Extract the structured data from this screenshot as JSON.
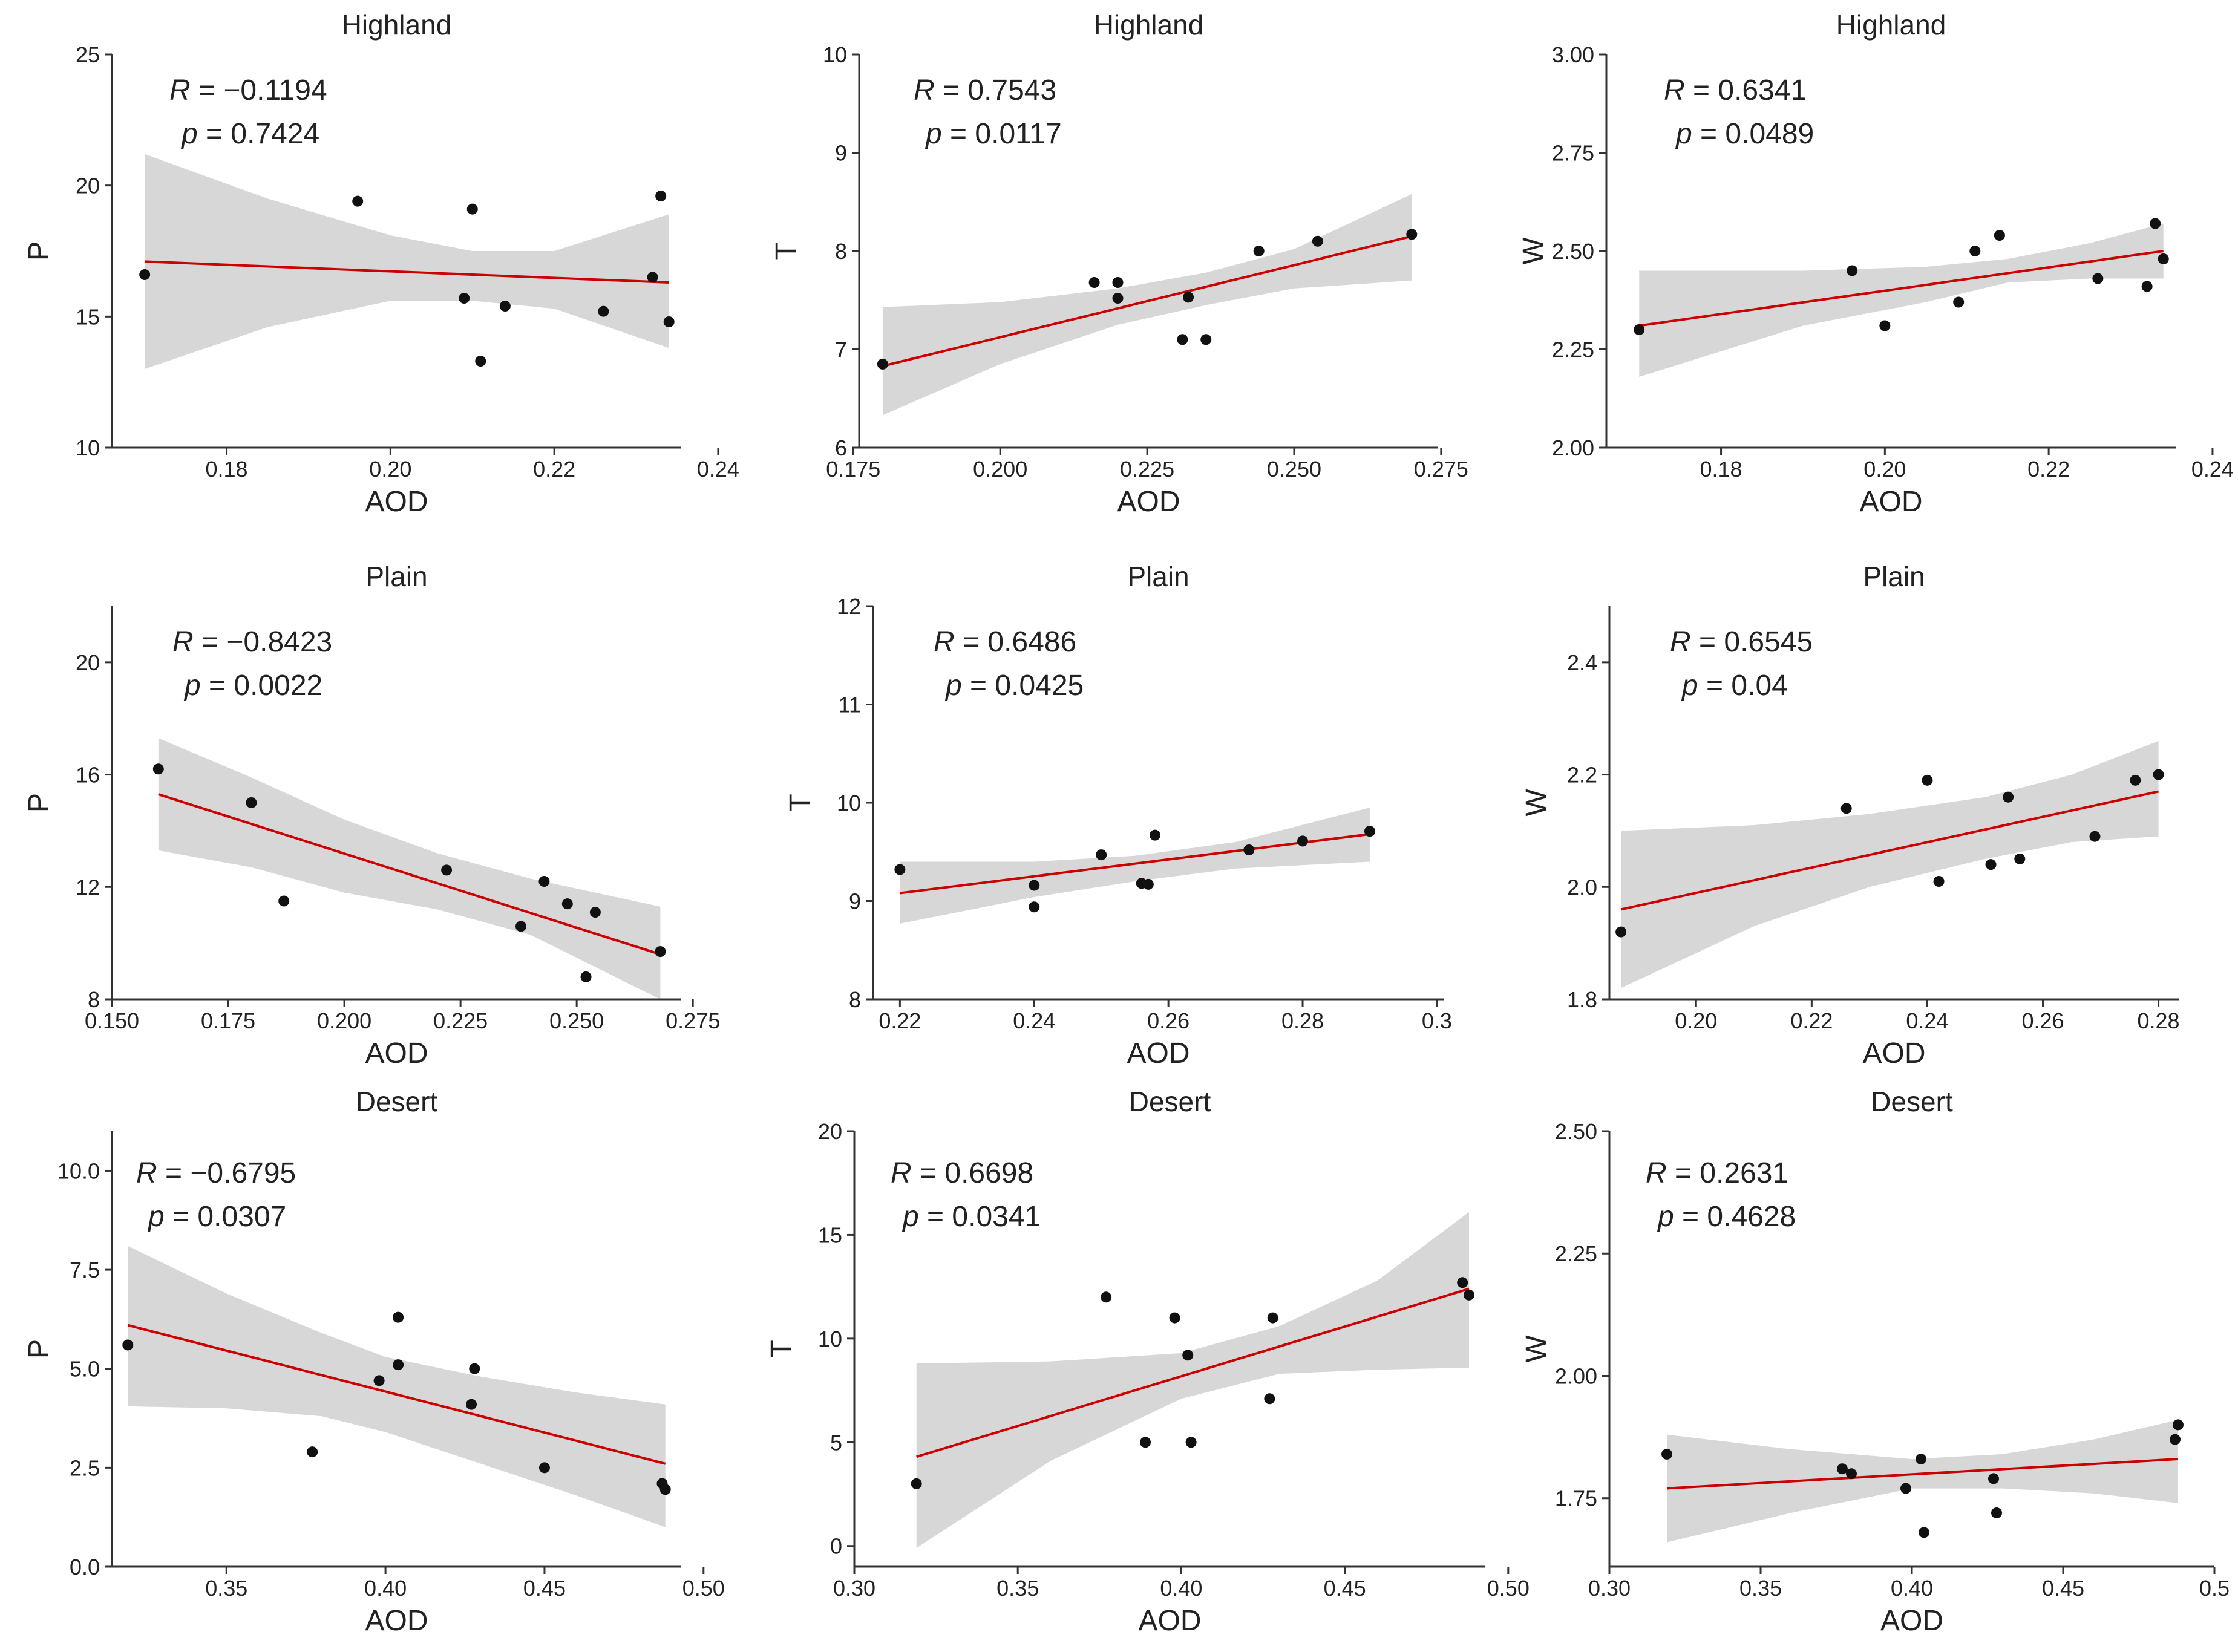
{
  "colors": {
    "line": "#cc0000",
    "band": "#d7d7d7",
    "point": "#111111",
    "axis": "#333333"
  },
  "chart_data": [
    {
      "type": "scatter",
      "title": "Highland",
      "xlabel": "AOD",
      "ylabel": "P",
      "xlim": [
        0.166,
        0.2355
      ],
      "ylim": [
        10,
        25
      ],
      "xticks": [
        0.18,
        0.2,
        0.22,
        0.24
      ],
      "xtick_labels": [
        "0.18",
        "0.20",
        "0.22",
        "0.24"
      ],
      "yticks": [
        10,
        15,
        20,
        25
      ],
      "ytick_labels": [
        "10",
        "15",
        "20",
        "25"
      ],
      "R_label": "R",
      "R_value": "−0.1194",
      "p_label": "p",
      "p_value": "0.7424",
      "x": [
        0.17,
        0.196,
        0.209,
        0.21,
        0.211,
        0.214,
        0.226,
        0.232,
        0.233,
        0.234
      ],
      "y": [
        16.6,
        19.4,
        15.7,
        19.1,
        13.3,
        15.4,
        15.2,
        16.5,
        19.6,
        14.8
      ],
      "fit": [
        [
          0.17,
          17.1
        ],
        [
          0.234,
          16.3
        ]
      ],
      "band_upper": [
        [
          0.17,
          21.2
        ],
        [
          0.185,
          19.5
        ],
        [
          0.2,
          18.1
        ],
        [
          0.21,
          17.5
        ],
        [
          0.22,
          17.5
        ],
        [
          0.234,
          18.9
        ]
      ],
      "band_lower": [
        [
          0.17,
          13.0
        ],
        [
          0.185,
          14.6
        ],
        [
          0.2,
          15.6
        ],
        [
          0.21,
          15.6
        ],
        [
          0.22,
          15.3
        ],
        [
          0.234,
          13.8
        ]
      ]
    },
    {
      "type": "scatter",
      "title": "Highland",
      "xlabel": "AOD",
      "ylabel": "T",
      "xlim": [
        0.176,
        0.2745
      ],
      "ylim": [
        6,
        10
      ],
      "xticks": [
        0.175,
        0.2,
        0.225,
        0.25,
        0.275
      ],
      "xtick_labels": [
        "0.175",
        "0.200",
        "0.225",
        "0.250",
        "0.275"
      ],
      "yticks": [
        6,
        7,
        8,
        9,
        10
      ],
      "ytick_labels": [
        "6",
        "7",
        "8",
        "9",
        "10"
      ],
      "R_label": "R",
      "R_value": "0.7543",
      "p_label": "p",
      "p_value": "0.0117",
      "x": [
        0.18,
        0.216,
        0.22,
        0.22,
        0.231,
        0.232,
        0.235,
        0.244,
        0.254,
        0.27
      ],
      "y": [
        6.85,
        7.68,
        7.68,
        7.52,
        7.1,
        7.53,
        7.1,
        8.0,
        8.1,
        8.17
      ],
      "fit": [
        [
          0.18,
          6.83
        ],
        [
          0.27,
          8.15
        ]
      ],
      "band_upper": [
        [
          0.18,
          7.43
        ],
        [
          0.2,
          7.48
        ],
        [
          0.22,
          7.62
        ],
        [
          0.235,
          7.78
        ],
        [
          0.25,
          8.02
        ],
        [
          0.27,
          8.58
        ]
      ],
      "band_lower": [
        [
          0.18,
          6.33
        ],
        [
          0.2,
          6.85
        ],
        [
          0.22,
          7.25
        ],
        [
          0.235,
          7.45
        ],
        [
          0.25,
          7.62
        ],
        [
          0.27,
          7.7
        ]
      ]
    },
    {
      "type": "scatter",
      "title": "Highland",
      "xlabel": "AOD",
      "ylabel": "W",
      "xlim": [
        0.166,
        0.2355
      ],
      "ylim": [
        2.0,
        3.0
      ],
      "xticks": [
        0.18,
        0.2,
        0.22,
        0.24
      ],
      "xtick_labels": [
        "0.18",
        "0.20",
        "0.22",
        "0.24"
      ],
      "yticks": [
        2.0,
        2.25,
        2.5,
        2.75,
        3.0
      ],
      "ytick_labels": [
        "2.00",
        "2.25",
        "2.50",
        "2.75",
        "3.00"
      ],
      "R_label": "R",
      "R_value": "0.6341",
      "p_label": "p",
      "p_value": "0.0489",
      "x": [
        0.17,
        0.196,
        0.2,
        0.209,
        0.211,
        0.214,
        0.226,
        0.232,
        0.233,
        0.234
      ],
      "y": [
        2.3,
        2.45,
        2.31,
        2.37,
        2.5,
        2.54,
        2.43,
        2.41,
        2.57,
        2.48
      ],
      "fit": [
        [
          0.17,
          2.31
        ],
        [
          0.234,
          2.5
        ]
      ],
      "band_upper": [
        [
          0.17,
          2.45
        ],
        [
          0.19,
          2.45
        ],
        [
          0.205,
          2.46
        ],
        [
          0.215,
          2.48
        ],
        [
          0.225,
          2.52
        ],
        [
          0.234,
          2.57
        ]
      ],
      "band_lower": [
        [
          0.17,
          2.18
        ],
        [
          0.19,
          2.31
        ],
        [
          0.205,
          2.37
        ],
        [
          0.215,
          2.42
        ],
        [
          0.225,
          2.43
        ],
        [
          0.234,
          2.43
        ]
      ]
    },
    {
      "type": "scatter",
      "title": "Plain",
      "xlabel": "AOD",
      "ylabel": "P",
      "xlim": [
        0.15,
        0.2725
      ],
      "ylim": [
        8,
        22
      ],
      "xticks": [
        0.15,
        0.175,
        0.2,
        0.225,
        0.25,
        0.275
      ],
      "xtick_labels": [
        "0.150",
        "0.175",
        "0.200",
        "0.225",
        "0.250",
        "0.275"
      ],
      "yticks": [
        8,
        12,
        16,
        20
      ],
      "ytick_labels": [
        "8",
        "12",
        "16",
        "20"
      ],
      "R_label": "R",
      "R_value": "−0.8423",
      "p_label": "p",
      "p_value": "0.0022",
      "x": [
        0.16,
        0.18,
        0.187,
        0.222,
        0.238,
        0.243,
        0.248,
        0.252,
        0.254,
        0.268
      ],
      "y": [
        16.2,
        15.0,
        11.5,
        12.6,
        10.6,
        12.2,
        11.4,
        8.8,
        11.1,
        9.7
      ],
      "fit": [
        [
          0.16,
          15.3
        ],
        [
          0.268,
          9.6
        ]
      ],
      "band_upper": [
        [
          0.16,
          17.3
        ],
        [
          0.18,
          15.9
        ],
        [
          0.2,
          14.4
        ],
        [
          0.22,
          13.2
        ],
        [
          0.24,
          12.3
        ],
        [
          0.268,
          11.3
        ]
      ],
      "band_lower": [
        [
          0.16,
          13.3
        ],
        [
          0.18,
          12.7
        ],
        [
          0.2,
          11.8
        ],
        [
          0.22,
          11.2
        ],
        [
          0.24,
          10.3
        ],
        [
          0.268,
          8.0
        ]
      ]
    },
    {
      "type": "scatter",
      "title": "Plain",
      "xlabel": "AOD",
      "ylabel": "T",
      "xlim": [
        0.216,
        0.301
      ],
      "ylim": [
        8,
        12
      ],
      "xticks": [
        0.22,
        0.24,
        0.26,
        0.28,
        0.3
      ],
      "xtick_labels": [
        "0.22",
        "0.24",
        "0.26",
        "0.28",
        "0.3"
      ],
      "yticks": [
        8,
        9,
        10,
        11,
        12
      ],
      "ytick_labels": [
        "8",
        "9",
        "10",
        "11",
        "12"
      ],
      "R_label": "R",
      "R_value": "0.6486",
      "p_label": "p",
      "p_value": "0.0425",
      "x": [
        0.22,
        0.24,
        0.24,
        0.25,
        0.256,
        0.257,
        0.258,
        0.272,
        0.28,
        0.29
      ],
      "y": [
        9.32,
        9.16,
        8.94,
        9.47,
        9.18,
        9.17,
        9.67,
        9.52,
        9.61,
        9.71
      ],
      "fit": [
        [
          0.22,
          9.08
        ],
        [
          0.29,
          9.68
        ]
      ],
      "band_upper": [
        [
          0.22,
          9.4
        ],
        [
          0.24,
          9.4
        ],
        [
          0.255,
          9.46
        ],
        [
          0.27,
          9.6
        ],
        [
          0.29,
          9.95
        ]
      ],
      "band_lower": [
        [
          0.22,
          8.77
        ],
        [
          0.24,
          9.04
        ],
        [
          0.255,
          9.2
        ],
        [
          0.27,
          9.33
        ],
        [
          0.29,
          9.4
        ]
      ]
    },
    {
      "type": "scatter",
      "title": "Plain",
      "xlabel": "AOD",
      "ylabel": "W",
      "xlim": [
        0.185,
        0.2835
      ],
      "ylim": [
        1.8,
        2.5
      ],
      "xticks": [
        0.2,
        0.22,
        0.24,
        0.26,
        0.28
      ],
      "xtick_labels": [
        "0.20",
        "0.22",
        "0.24",
        "0.26",
        "0.28"
      ],
      "yticks": [
        1.8,
        2.0,
        2.2,
        2.4
      ],
      "ytick_labels": [
        "1.8",
        "2.0",
        "2.2",
        "2.4"
      ],
      "R_label": "R",
      "R_value": "0.6545",
      "p_label": "p",
      "p_value": "0.04",
      "x": [
        0.187,
        0.226,
        0.24,
        0.242,
        0.251,
        0.254,
        0.256,
        0.269,
        0.276,
        0.28
      ],
      "y": [
        1.92,
        2.14,
        2.19,
        2.01,
        2.04,
        2.16,
        2.05,
        2.09,
        2.19,
        2.2
      ],
      "fit": [
        [
          0.187,
          1.96
        ],
        [
          0.28,
          2.17
        ]
      ],
      "band_upper": [
        [
          0.187,
          2.1
        ],
        [
          0.21,
          2.11
        ],
        [
          0.23,
          2.13
        ],
        [
          0.25,
          2.16
        ],
        [
          0.265,
          2.2
        ],
        [
          0.28,
          2.26
        ]
      ],
      "band_lower": [
        [
          0.187,
          1.82
        ],
        [
          0.21,
          1.93
        ],
        [
          0.23,
          2.0
        ],
        [
          0.25,
          2.05
        ],
        [
          0.265,
          2.08
        ],
        [
          0.28,
          2.09
        ]
      ]
    },
    {
      "type": "scatter",
      "title": "Desert",
      "xlabel": "AOD",
      "ylabel": "P",
      "xlim": [
        0.314,
        0.493
      ],
      "ylim": [
        0,
        11
      ],
      "xticks": [
        0.35,
        0.4,
        0.45,
        0.5
      ],
      "xtick_labels": [
        "0.35",
        "0.40",
        "0.45",
        "0.50"
      ],
      "yticks": [
        0,
        2.5,
        5.0,
        7.5,
        10.0
      ],
      "ytick_labels": [
        "0.0",
        "2.5",
        "5.0",
        "7.5",
        "10.0"
      ],
      "R_label": "R",
      "R_value": "−0.6795",
      "p_label": "p",
      "p_value": "0.0307",
      "x": [
        0.319,
        0.377,
        0.398,
        0.404,
        0.404,
        0.427,
        0.428,
        0.45,
        0.487,
        0.488
      ],
      "y": [
        5.6,
        2.9,
        4.7,
        6.3,
        5.1,
        4.1,
        5.0,
        2.5,
        2.1,
        1.95
      ],
      "fit": [
        [
          0.319,
          6.1
        ],
        [
          0.488,
          2.6
        ]
      ],
      "band_upper": [
        [
          0.319,
          8.1
        ],
        [
          0.35,
          6.9
        ],
        [
          0.38,
          5.9
        ],
        [
          0.4,
          5.3
        ],
        [
          0.43,
          4.8
        ],
        [
          0.46,
          4.4
        ],
        [
          0.488,
          4.1
        ]
      ],
      "band_lower": [
        [
          0.319,
          4.05
        ],
        [
          0.35,
          4.0
        ],
        [
          0.38,
          3.8
        ],
        [
          0.4,
          3.4
        ],
        [
          0.43,
          2.6
        ],
        [
          0.46,
          1.8
        ],
        [
          0.488,
          1.0
        ]
      ]
    },
    {
      "type": "scatter",
      "title": "Desert",
      "xlabel": "AOD",
      "ylabel": "T",
      "xlim": [
        0.3,
        0.493
      ],
      "ylim": [
        -1,
        20
      ],
      "xticks": [
        0.3,
        0.35,
        0.4,
        0.45,
        0.5
      ],
      "xtick_labels": [
        "0.30",
        "0.35",
        "0.40",
        "0.45",
        "0.50"
      ],
      "yticks": [
        0,
        5,
        10,
        15,
        20
      ],
      "ytick_labels": [
        "0",
        "5",
        "10",
        "15",
        "20"
      ],
      "R_label": "R",
      "R_value": "0.6698",
      "p_label": "p",
      "p_value": "0.0341",
      "x": [
        0.319,
        0.377,
        0.389,
        0.398,
        0.402,
        0.403,
        0.427,
        0.428,
        0.486,
        0.488
      ],
      "y": [
        3.0,
        12.0,
        5.0,
        11.0,
        9.2,
        5.0,
        7.1,
        11.0,
        12.7,
        12.1
      ],
      "fit": [
        [
          0.319,
          4.3
        ],
        [
          0.488,
          12.4
        ]
      ],
      "band_upper": [
        [
          0.319,
          8.8
        ],
        [
          0.36,
          8.9
        ],
        [
          0.4,
          9.3
        ],
        [
          0.43,
          10.6
        ],
        [
          0.46,
          12.8
        ],
        [
          0.488,
          16.1
        ]
      ],
      "band_lower": [
        [
          0.319,
          -0.1
        ],
        [
          0.36,
          4.1
        ],
        [
          0.4,
          7.1
        ],
        [
          0.43,
          8.3
        ],
        [
          0.46,
          8.5
        ],
        [
          0.488,
          8.6
        ]
      ]
    },
    {
      "type": "scatter",
      "title": "Desert",
      "xlabel": "AOD",
      "ylabel": "W",
      "xlim": [
        0.3,
        0.5
      ],
      "ylim": [
        1.61,
        2.5
      ],
      "xticks": [
        0.3,
        0.35,
        0.4,
        0.45,
        0.5
      ],
      "xtick_labels": [
        "0.30",
        "0.35",
        "0.40",
        "0.45",
        "0.5"
      ],
      "yticks": [
        1.75,
        2.0,
        2.25,
        2.5
      ],
      "ytick_labels": [
        "1.75",
        "2.00",
        "2.25",
        "2.50"
      ],
      "R_label": "R",
      "R_value": "0.2631",
      "p_label": "p",
      "p_value": "0.4628",
      "x": [
        0.319,
        0.377,
        0.38,
        0.398,
        0.403,
        0.404,
        0.427,
        0.428,
        0.487,
        0.488
      ],
      "y": [
        1.84,
        1.81,
        1.8,
        1.77,
        1.83,
        1.68,
        1.79,
        1.72,
        1.87,
        1.9
      ],
      "fit": [
        [
          0.319,
          1.77
        ],
        [
          0.488,
          1.83
        ]
      ],
      "band_upper": [
        [
          0.319,
          1.88
        ],
        [
          0.36,
          1.85
        ],
        [
          0.4,
          1.83
        ],
        [
          0.43,
          1.84
        ],
        [
          0.46,
          1.87
        ],
        [
          0.488,
          1.91
        ]
      ],
      "band_lower": [
        [
          0.319,
          1.66
        ],
        [
          0.36,
          1.72
        ],
        [
          0.4,
          1.77
        ],
        [
          0.43,
          1.77
        ],
        [
          0.46,
          1.76
        ],
        [
          0.488,
          1.74
        ]
      ]
    }
  ]
}
